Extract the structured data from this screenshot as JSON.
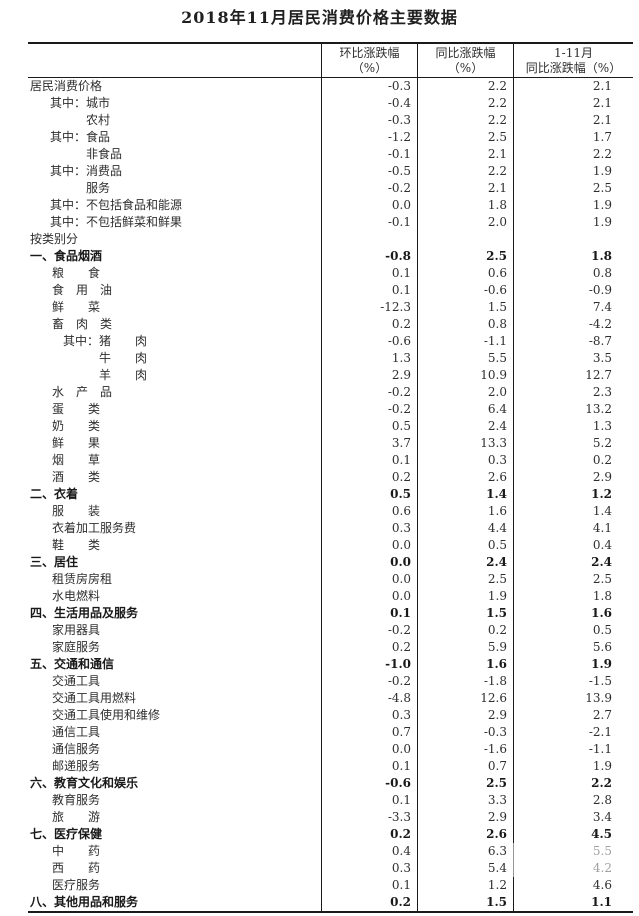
{
  "page": {
    "title": "2018年11月居民消费价格主要数据",
    "background_color": "#ffffff",
    "text_color": "#2e2e2e",
    "border_color": "#1a1a1a"
  },
  "table": {
    "header": {
      "col1_line1": "环比涨跌幅",
      "col1_line2": "（%）",
      "col2_line1": "同比涨跌幅",
      "col2_line2": "（%）",
      "col3_line1": "1-11月",
      "col3_line2": "同比涨跌幅（%）"
    },
    "rows": [
      {
        "label": "居民消费价格",
        "indent": "l0",
        "bold": false,
        "mom": "-0.3",
        "yoy": "2.2",
        "ytd": "2.1"
      },
      {
        "label": "其中：城市",
        "indent": "a1",
        "bold": false,
        "mom": "-0.4",
        "yoy": "2.2",
        "ytd": "2.1"
      },
      {
        "label": "农村",
        "indent": "a2",
        "bold": false,
        "mom": "-0.3",
        "yoy": "2.2",
        "ytd": "2.1"
      },
      {
        "label": "其中：食品",
        "indent": "a1",
        "bold": false,
        "mom": "-1.2",
        "yoy": "2.5",
        "ytd": "1.7"
      },
      {
        "label": "非食品",
        "indent": "a2",
        "bold": false,
        "mom": "-0.1",
        "yoy": "2.1",
        "ytd": "2.2"
      },
      {
        "label": "其中：消费品",
        "indent": "a1",
        "bold": false,
        "mom": "-0.5",
        "yoy": "2.2",
        "ytd": "1.9"
      },
      {
        "label": "服务",
        "indent": "a2",
        "bold": false,
        "mom": "-0.2",
        "yoy": "2.1",
        "ytd": "2.5"
      },
      {
        "label": "其中：不包括食品和能源",
        "indent": "a1",
        "bold": false,
        "mom": "0.0",
        "yoy": "1.8",
        "ytd": "1.9"
      },
      {
        "label": "其中：不包括鲜菜和鲜果",
        "indent": "a1",
        "bold": false,
        "mom": "-0.1",
        "yoy": "2.0",
        "ytd": "1.9"
      },
      {
        "label": "按类别分",
        "indent": "l0",
        "bold": false,
        "mom": "",
        "yoy": "",
        "ytd": ""
      },
      {
        "label": "一、食品烟酒",
        "indent": "l0",
        "bold": true,
        "mom": "-0.8",
        "yoy": "2.5",
        "ytd": "1.8"
      },
      {
        "label": "粮　　食",
        "indent": "b1",
        "bold": false,
        "mom": "0.1",
        "yoy": "0.6",
        "ytd": "0.8"
      },
      {
        "label": "食　用　油",
        "indent": "b1",
        "bold": false,
        "mom": "0.1",
        "yoy": "-0.6",
        "ytd": "-0.9"
      },
      {
        "label": "鲜　　菜",
        "indent": "b1",
        "bold": false,
        "mom": "-12.3",
        "yoy": "1.5",
        "ytd": "7.4"
      },
      {
        "label": "畜　肉　类",
        "indent": "b1",
        "bold": false,
        "mom": "0.2",
        "yoy": "0.8",
        "ytd": "-4.2"
      },
      {
        "label": "其中：猪　　肉",
        "indent": "b2",
        "bold": false,
        "mom": "-0.6",
        "yoy": "-1.1",
        "ytd": "-8.7"
      },
      {
        "label": "牛　　肉",
        "indent": "b3",
        "bold": false,
        "mom": "1.3",
        "yoy": "5.5",
        "ytd": "3.5"
      },
      {
        "label": "羊　　肉",
        "indent": "b3",
        "bold": false,
        "mom": "2.9",
        "yoy": "10.9",
        "ytd": "12.7"
      },
      {
        "label": "水　产　品",
        "indent": "b1",
        "bold": false,
        "mom": "-0.2",
        "yoy": "2.0",
        "ytd": "2.3"
      },
      {
        "label": "蛋　　类",
        "indent": "b1",
        "bold": false,
        "mom": "-0.2",
        "yoy": "6.4",
        "ytd": "13.2"
      },
      {
        "label": "奶　　类",
        "indent": "b1",
        "bold": false,
        "mom": "0.5",
        "yoy": "2.4",
        "ytd": "1.3"
      },
      {
        "label": "鲜　　果",
        "indent": "b1",
        "bold": false,
        "mom": "3.7",
        "yoy": "13.3",
        "ytd": "5.2"
      },
      {
        "label": "烟　　草",
        "indent": "b1",
        "bold": false,
        "mom": "0.1",
        "yoy": "0.3",
        "ytd": "0.2"
      },
      {
        "label": "酒　　类",
        "indent": "b1",
        "bold": false,
        "mom": "0.2",
        "yoy": "2.6",
        "ytd": "2.9"
      },
      {
        "label": "二、衣着",
        "indent": "l0",
        "bold": true,
        "mom": "0.5",
        "yoy": "1.4",
        "ytd": "1.2"
      },
      {
        "label": "服　　装",
        "indent": "b1",
        "bold": false,
        "mom": "0.6",
        "yoy": "1.6",
        "ytd": "1.4"
      },
      {
        "label": "衣着加工服务费",
        "indent": "b1",
        "bold": false,
        "mom": "0.3",
        "yoy": "4.4",
        "ytd": "4.1"
      },
      {
        "label": "鞋　　类",
        "indent": "b1",
        "bold": false,
        "mom": "0.0",
        "yoy": "0.5",
        "ytd": "0.4"
      },
      {
        "label": "三、居住",
        "indent": "l0",
        "bold": true,
        "mom": "0.0",
        "yoy": "2.4",
        "ytd": "2.4"
      },
      {
        "label": "租赁房房租",
        "indent": "b1",
        "bold": false,
        "mom": "0.0",
        "yoy": "2.5",
        "ytd": "2.5"
      },
      {
        "label": "水电燃料",
        "indent": "b1",
        "bold": false,
        "mom": "0.0",
        "yoy": "1.9",
        "ytd": "1.8"
      },
      {
        "label": "四、生活用品及服务",
        "indent": "l0",
        "bold": true,
        "mom": "0.1",
        "yoy": "1.5",
        "ytd": "1.6"
      },
      {
        "label": "家用器具",
        "indent": "b1",
        "bold": false,
        "mom": "-0.2",
        "yoy": "0.2",
        "ytd": "0.5"
      },
      {
        "label": "家庭服务",
        "indent": "b1",
        "bold": false,
        "mom": "0.2",
        "yoy": "5.9",
        "ytd": "5.6"
      },
      {
        "label": "五、交通和通信",
        "indent": "l0",
        "bold": true,
        "mom": "-1.0",
        "yoy": "1.6",
        "ytd": "1.9"
      },
      {
        "label": "交通工具",
        "indent": "b1",
        "bold": false,
        "mom": "-0.2",
        "yoy": "-1.8",
        "ytd": "-1.5"
      },
      {
        "label": "交通工具用燃料",
        "indent": "b1",
        "bold": false,
        "mom": "-4.8",
        "yoy": "12.6",
        "ytd": "13.9"
      },
      {
        "label": "交通工具使用和维修",
        "indent": "b1",
        "bold": false,
        "mom": "0.3",
        "yoy": "2.9",
        "ytd": "2.7"
      },
      {
        "label": "通信工具",
        "indent": "b1",
        "bold": false,
        "mom": "0.7",
        "yoy": "-0.3",
        "ytd": "-2.1"
      },
      {
        "label": "通信服务",
        "indent": "b1",
        "bold": false,
        "mom": "0.0",
        "yoy": "-1.6",
        "ytd": "-1.1"
      },
      {
        "label": "邮递服务",
        "indent": "b1",
        "bold": false,
        "mom": "0.1",
        "yoy": "0.7",
        "ytd": "1.9"
      },
      {
        "label": "六、教育文化和娱乐",
        "indent": "l0",
        "bold": true,
        "mom": "-0.6",
        "yoy": "2.5",
        "ytd": "2.2"
      },
      {
        "label": "教育服务",
        "indent": "b1",
        "bold": false,
        "mom": "0.1",
        "yoy": "3.3",
        "ytd": "2.8"
      },
      {
        "label": "旅　　游",
        "indent": "b1",
        "bold": false,
        "mom": "-3.3",
        "yoy": "2.9",
        "ytd": "3.4"
      },
      {
        "label": "七、医疗保健",
        "indent": "l0",
        "bold": true,
        "mom": "0.2",
        "yoy": "2.6",
        "ytd": "4.5"
      },
      {
        "label": "中　　药",
        "indent": "b1",
        "bold": false,
        "mom": "0.4",
        "yoy": "6.3",
        "ytd": "5.5",
        "ytd_faded": true
      },
      {
        "label": "西　　药",
        "indent": "b1",
        "bold": false,
        "mom": "0.3",
        "yoy": "5.4",
        "ytd": "4.2",
        "ytd_faded": true
      },
      {
        "label": "医疗服务",
        "indent": "b1",
        "bold": false,
        "mom": "0.1",
        "yoy": "1.2",
        "ytd": "4.6"
      },
      {
        "label": "八、其他用品和服务",
        "indent": "l0",
        "bold": true,
        "mom": "0.2",
        "yoy": "1.5",
        "ytd": "1.1"
      }
    ]
  }
}
